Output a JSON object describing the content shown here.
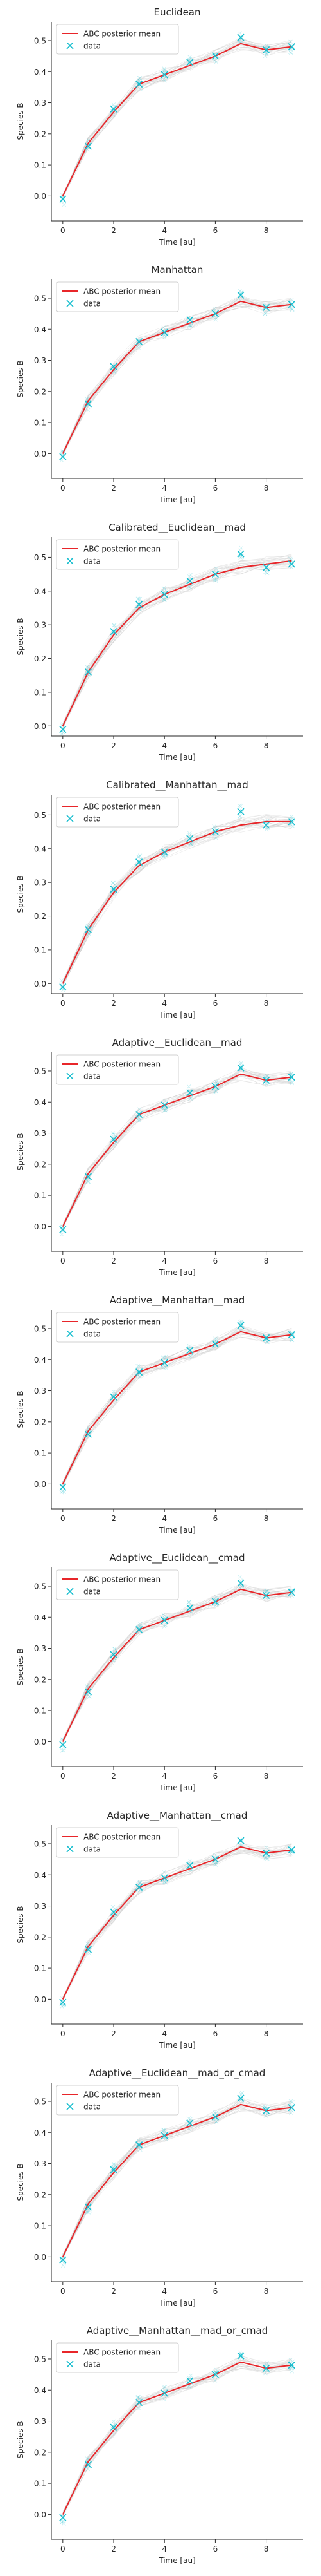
{
  "figure": {
    "legend_labels": {
      "posterior_mean": "ABC posterior mean",
      "data": "data"
    }
  },
  "chart_data": [
    {
      "type": "line",
      "title": "Euclidean",
      "xlabel": "Time [au]",
      "ylabel": "Species B",
      "x": [
        0,
        1,
        2,
        3,
        4,
        5,
        6,
        7,
        8,
        9
      ],
      "xlim": [
        -0.45,
        9.45
      ],
      "ylim": [
        -0.08,
        0.56
      ],
      "xticks": [
        0,
        2,
        4,
        6,
        8
      ],
      "yticks": [
        0.0,
        0.1,
        0.2,
        0.3,
        0.4,
        0.5
      ],
      "series": [
        {
          "name": "ABC posterior mean",
          "values": [
            0.0,
            0.17,
            0.27,
            0.36,
            0.39,
            0.42,
            0.45,
            0.49,
            0.47,
            0.48
          ],
          "color": "#e8262a"
        },
        {
          "name": "data",
          "values": [
            -0.01,
            0.16,
            0.28,
            0.36,
            0.39,
            0.43,
            0.45,
            0.51,
            0.47,
            0.48
          ],
          "color": "#17becf"
        }
      ],
      "legend": "top-left",
      "grid": false
    },
    {
      "type": "line",
      "title": "Manhattan",
      "xlabel": "Time [au]",
      "ylabel": "Species B",
      "x": [
        0,
        1,
        2,
        3,
        4,
        5,
        6,
        7,
        8,
        9
      ],
      "xlim": [
        -0.45,
        9.45
      ],
      "ylim": [
        -0.08,
        0.56
      ],
      "xticks": [
        0,
        2,
        4,
        6,
        8
      ],
      "yticks": [
        0.0,
        0.1,
        0.2,
        0.3,
        0.4,
        0.5
      ],
      "series": [
        {
          "name": "ABC posterior mean",
          "values": [
            0.0,
            0.17,
            0.27,
            0.36,
            0.39,
            0.42,
            0.45,
            0.49,
            0.47,
            0.48
          ],
          "color": "#e8262a"
        },
        {
          "name": "data",
          "values": [
            -0.01,
            0.16,
            0.28,
            0.36,
            0.39,
            0.43,
            0.45,
            0.51,
            0.47,
            0.48
          ],
          "color": "#17becf"
        }
      ],
      "legend": "top-left",
      "grid": false
    },
    {
      "type": "line",
      "title": "Calibrated__Euclidean__mad",
      "xlabel": "Time [au]",
      "ylabel": "Species B",
      "x": [
        0,
        1,
        2,
        3,
        4,
        5,
        6,
        7,
        8,
        9
      ],
      "xlim": [
        -0.45,
        9.45
      ],
      "ylim": [
        -0.03,
        0.56
      ],
      "xticks": [
        0,
        2,
        4,
        6,
        8
      ],
      "yticks": [
        0.0,
        0.1,
        0.2,
        0.3,
        0.4,
        0.5
      ],
      "series": [
        {
          "name": "ABC posterior mean",
          "values": [
            0.0,
            0.16,
            0.27,
            0.35,
            0.39,
            0.42,
            0.45,
            0.47,
            0.48,
            0.49
          ],
          "color": "#e8262a"
        },
        {
          "name": "data",
          "values": [
            -0.01,
            0.16,
            0.28,
            0.36,
            0.39,
            0.43,
            0.45,
            0.51,
            0.47,
            0.48
          ],
          "color": "#17becf"
        }
      ],
      "legend": "top-left",
      "grid": false
    },
    {
      "type": "line",
      "title": "Calibrated__Manhattan__mad",
      "xlabel": "Time [au]",
      "ylabel": "Species B",
      "x": [
        0,
        1,
        2,
        3,
        4,
        5,
        6,
        7,
        8,
        9
      ],
      "xlim": [
        -0.45,
        9.45
      ],
      "ylim": [
        -0.03,
        0.56
      ],
      "xticks": [
        0,
        2,
        4,
        6,
        8
      ],
      "yticks": [
        0.0,
        0.1,
        0.2,
        0.3,
        0.4,
        0.5
      ],
      "series": [
        {
          "name": "ABC posterior mean",
          "values": [
            0.0,
            0.16,
            0.27,
            0.35,
            0.39,
            0.42,
            0.45,
            0.47,
            0.48,
            0.48
          ],
          "color": "#e8262a"
        },
        {
          "name": "data",
          "values": [
            -0.01,
            0.16,
            0.28,
            0.36,
            0.39,
            0.43,
            0.45,
            0.51,
            0.47,
            0.48
          ],
          "color": "#17becf"
        }
      ],
      "legend": "top-left",
      "grid": false
    },
    {
      "type": "line",
      "title": "Adaptive__Euclidean__mad",
      "xlabel": "Time [au]",
      "ylabel": "Species B",
      "x": [
        0,
        1,
        2,
        3,
        4,
        5,
        6,
        7,
        8,
        9
      ],
      "xlim": [
        -0.45,
        9.45
      ],
      "ylim": [
        -0.08,
        0.56
      ],
      "xticks": [
        0,
        2,
        4,
        6,
        8
      ],
      "yticks": [
        0.0,
        0.1,
        0.2,
        0.3,
        0.4,
        0.5
      ],
      "series": [
        {
          "name": "ABC posterior mean",
          "values": [
            0.0,
            0.17,
            0.27,
            0.36,
            0.39,
            0.42,
            0.45,
            0.49,
            0.47,
            0.48
          ],
          "color": "#e8262a"
        },
        {
          "name": "data",
          "values": [
            -0.01,
            0.16,
            0.28,
            0.36,
            0.39,
            0.43,
            0.45,
            0.51,
            0.47,
            0.48
          ],
          "color": "#17becf"
        }
      ],
      "legend": "top-left",
      "grid": false
    },
    {
      "type": "line",
      "title": "Adaptive__Manhattan__mad",
      "xlabel": "Time [au]",
      "ylabel": "Species B",
      "x": [
        0,
        1,
        2,
        3,
        4,
        5,
        6,
        7,
        8,
        9
      ],
      "xlim": [
        -0.45,
        9.45
      ],
      "ylim": [
        -0.08,
        0.56
      ],
      "xticks": [
        0,
        2,
        4,
        6,
        8
      ],
      "yticks": [
        0.0,
        0.1,
        0.2,
        0.3,
        0.4,
        0.5
      ],
      "series": [
        {
          "name": "ABC posterior mean",
          "values": [
            0.0,
            0.17,
            0.27,
            0.36,
            0.39,
            0.42,
            0.45,
            0.49,
            0.47,
            0.48
          ],
          "color": "#e8262a"
        },
        {
          "name": "data",
          "values": [
            -0.01,
            0.16,
            0.28,
            0.36,
            0.39,
            0.43,
            0.45,
            0.51,
            0.47,
            0.48
          ],
          "color": "#17becf"
        }
      ],
      "legend": "top-left",
      "grid": false
    },
    {
      "type": "line",
      "title": "Adaptive__Euclidean__cmad",
      "xlabel": "Time [au]",
      "ylabel": "Species B",
      "x": [
        0,
        1,
        2,
        3,
        4,
        5,
        6,
        7,
        8,
        9
      ],
      "xlim": [
        -0.45,
        9.45
      ],
      "ylim": [
        -0.08,
        0.56
      ],
      "xticks": [
        0,
        2,
        4,
        6,
        8
      ],
      "yticks": [
        0.0,
        0.1,
        0.2,
        0.3,
        0.4,
        0.5
      ],
      "series": [
        {
          "name": "ABC posterior mean",
          "values": [
            0.0,
            0.17,
            0.27,
            0.36,
            0.39,
            0.42,
            0.45,
            0.49,
            0.47,
            0.48
          ],
          "color": "#e8262a"
        },
        {
          "name": "data",
          "values": [
            -0.01,
            0.16,
            0.28,
            0.36,
            0.39,
            0.43,
            0.45,
            0.51,
            0.47,
            0.48
          ],
          "color": "#17becf"
        }
      ],
      "legend": "top-left",
      "grid": false
    },
    {
      "type": "line",
      "title": "Adaptive__Manhattan__cmad",
      "xlabel": "Time [au]",
      "ylabel": "Species B",
      "x": [
        0,
        1,
        2,
        3,
        4,
        5,
        6,
        7,
        8,
        9
      ],
      "xlim": [
        -0.45,
        9.45
      ],
      "ylim": [
        -0.08,
        0.56
      ],
      "xticks": [
        0,
        2,
        4,
        6,
        8
      ],
      "yticks": [
        0.0,
        0.1,
        0.2,
        0.3,
        0.4,
        0.5
      ],
      "series": [
        {
          "name": "ABC posterior mean",
          "values": [
            0.0,
            0.17,
            0.27,
            0.36,
            0.39,
            0.42,
            0.45,
            0.49,
            0.47,
            0.48
          ],
          "color": "#e8262a"
        },
        {
          "name": "data",
          "values": [
            -0.01,
            0.16,
            0.28,
            0.36,
            0.39,
            0.43,
            0.45,
            0.51,
            0.47,
            0.48
          ],
          "color": "#17becf"
        }
      ],
      "legend": "top-left",
      "grid": false
    },
    {
      "type": "line",
      "title": "Adaptive__Euclidean__mad_or_cmad",
      "xlabel": "Time [au]",
      "ylabel": "Species B",
      "x": [
        0,
        1,
        2,
        3,
        4,
        5,
        6,
        7,
        8,
        9
      ],
      "xlim": [
        -0.45,
        9.45
      ],
      "ylim": [
        -0.08,
        0.56
      ],
      "xticks": [
        0,
        2,
        4,
        6,
        8
      ],
      "yticks": [
        0.0,
        0.1,
        0.2,
        0.3,
        0.4,
        0.5
      ],
      "series": [
        {
          "name": "ABC posterior mean",
          "values": [
            0.0,
            0.17,
            0.27,
            0.36,
            0.39,
            0.42,
            0.45,
            0.49,
            0.47,
            0.48
          ],
          "color": "#e8262a"
        },
        {
          "name": "data",
          "values": [
            -0.01,
            0.16,
            0.28,
            0.36,
            0.39,
            0.43,
            0.45,
            0.51,
            0.47,
            0.48
          ],
          "color": "#17becf"
        }
      ],
      "legend": "top-left",
      "grid": false
    },
    {
      "type": "line",
      "title": "Adaptive__Manhattan__mad_or_cmad",
      "xlabel": "Time [au]",
      "ylabel": "Species B",
      "x": [
        0,
        1,
        2,
        3,
        4,
        5,
        6,
        7,
        8,
        9
      ],
      "xlim": [
        -0.45,
        9.45
      ],
      "ylim": [
        -0.08,
        0.56
      ],
      "xticks": [
        0,
        2,
        4,
        6,
        8
      ],
      "yticks": [
        0.0,
        0.1,
        0.2,
        0.3,
        0.4,
        0.5
      ],
      "series": [
        {
          "name": "ABC posterior mean",
          "values": [
            0.0,
            0.17,
            0.27,
            0.36,
            0.39,
            0.42,
            0.45,
            0.49,
            0.47,
            0.48
          ],
          "color": "#e8262a"
        },
        {
          "name": "data",
          "values": [
            -0.01,
            0.16,
            0.28,
            0.36,
            0.39,
            0.43,
            0.45,
            0.51,
            0.47,
            0.48
          ],
          "color": "#17becf"
        }
      ],
      "legend": "top-left",
      "grid": false
    }
  ]
}
